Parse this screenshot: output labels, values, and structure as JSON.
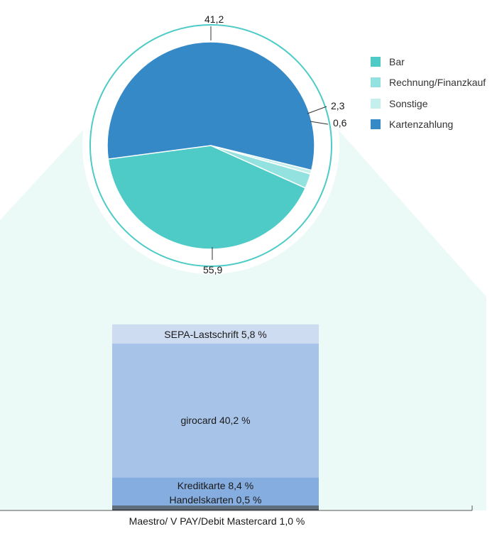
{
  "colors": {
    "bar": "#4ecbc7",
    "rechnung": "#93e2df",
    "sonstige": "#c4efed",
    "karte": "#3589c6",
    "zoom_bg": "#ecfaf7",
    "sepa": "#cedcf2",
    "girocard": "#a7c3e8",
    "kredit": "#86addf",
    "maestro": "#5e6e7e",
    "handel": "#3f4a56"
  },
  "chart_data": [
    {
      "type": "pie",
      "title": "",
      "slices": [
        {
          "label": "Bar",
          "value": 41.2,
          "value_label": "41,2"
        },
        {
          "label": "Rechnung/Finanzkauf",
          "value": 2.3,
          "value_label": "2,3"
        },
        {
          "label": "Sonstige",
          "value": 0.6,
          "value_label": "0,6"
        },
        {
          "label": "Kartenzahlung",
          "value": 55.9,
          "value_label": "55,9"
        }
      ],
      "legend": {
        "placement": "right",
        "entries": [
          "Bar",
          "Rechnung/Finanzkauf",
          "Sonstige",
          "Kartenzahlung"
        ]
      }
    },
    {
      "type": "bar",
      "stacked": true,
      "title": "",
      "segments_bottom_to_top": [
        {
          "label": "Handelskarten",
          "value": 0.5,
          "text": "Handelskarten 0,5 %"
        },
        {
          "label": "Maestro/ V PAY/Debit Mastercard",
          "value": 1.0,
          "text": "Maestro/ V PAY/Debit Mastercard 1,0 %"
        },
        {
          "label": "Kreditkarte",
          "value": 8.4,
          "text": "Kreditkarte 8,4 %"
        },
        {
          "label": "girocard",
          "value": 40.2,
          "text": "girocard 40,2 %"
        },
        {
          "label": "SEPA-Lastschrift",
          "value": 5.8,
          "text": "SEPA-Lastschrift 5,8 %"
        }
      ]
    }
  ]
}
